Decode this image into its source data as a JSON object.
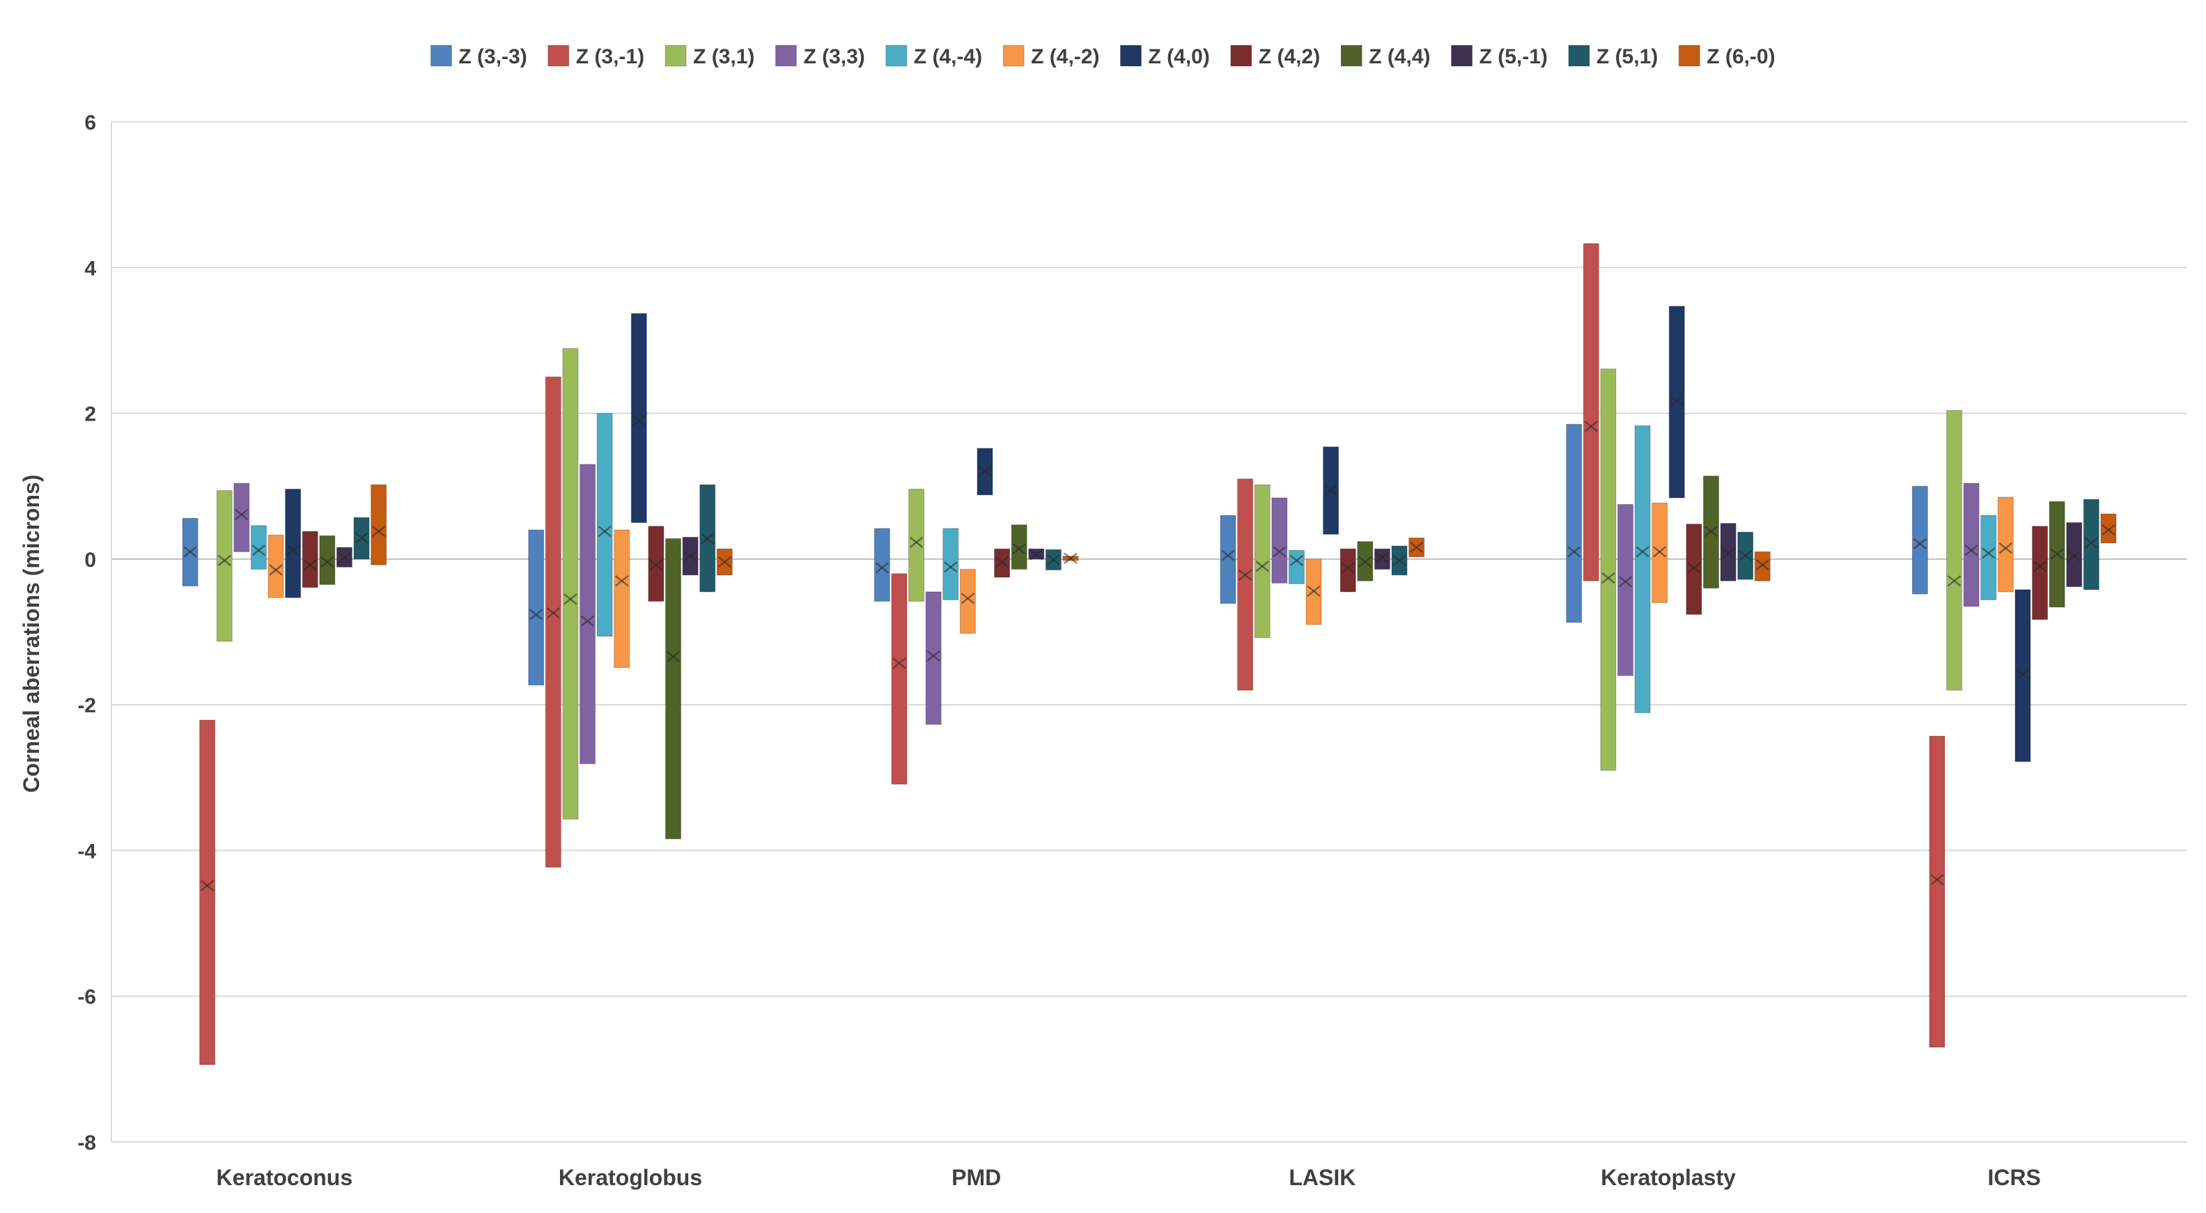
{
  "chart_data": {
    "type": "bar",
    "subtype": "floating-range-with-mean-marker",
    "title": "",
    "xlabel": "",
    "ylabel": "Corneal aberrations (microns)",
    "ylim": [
      -8,
      6
    ],
    "yticks": [
      6,
      4,
      2,
      0,
      -2,
      -4,
      -6,
      -8
    ],
    "grid": true,
    "legend_position": "top",
    "categories": [
      "Keratoconus",
      "Keratoglobus",
      "PMD",
      "LASIK",
      "Keratoplasty",
      "ICRS"
    ],
    "series": [
      {
        "name": "Z (3,-3)",
        "color": "#4f81bd",
        "low": [
          -0.37,
          -1.73,
          -0.58,
          -0.61,
          -0.87,
          -0.48
        ],
        "high": [
          0.56,
          0.4,
          0.42,
          0.6,
          1.85,
          1.0
        ],
        "mean": [
          0.1,
          -0.76,
          -0.12,
          0.05,
          0.1,
          0.21
        ]
      },
      {
        "name": "Z (3,-1)",
        "color": "#c0504d",
        "low": [
          -6.94,
          -4.23,
          -3.09,
          -1.8,
          -0.3,
          -6.7
        ],
        "high": [
          -2.21,
          2.5,
          -0.2,
          1.1,
          4.33,
          -2.43
        ],
        "mean": [
          -4.48,
          -0.74,
          -1.43,
          -0.22,
          1.82,
          -4.4
        ]
      },
      {
        "name": "Z (3,1)",
        "color": "#9bbb59",
        "low": [
          -1.13,
          -3.57,
          -0.58,
          -1.08,
          -2.9,
          -1.8
        ],
        "high": [
          0.94,
          2.89,
          0.96,
          1.02,
          2.61,
          2.04
        ],
        "mean": [
          -0.02,
          -0.55,
          0.23,
          -0.1,
          -0.26,
          -0.3
        ]
      },
      {
        "name": "Z (3,3)",
        "color": "#8064a2",
        "low": [
          0.1,
          -2.81,
          -2.27,
          -0.33,
          -1.6,
          -0.65
        ],
        "high": [
          1.04,
          1.3,
          -0.45,
          0.84,
          0.75,
          1.04
        ],
        "mean": [
          0.61,
          -0.85,
          -1.33,
          0.1,
          -0.31,
          0.12
        ]
      },
      {
        "name": "Z (4,-4)",
        "color": "#4bacc6",
        "low": [
          -0.14,
          -1.06,
          -0.56,
          -0.34,
          -2.11,
          -0.56
        ],
        "high": [
          0.46,
          2.0,
          0.42,
          0.12,
          1.83,
          0.6
        ],
        "mean": [
          0.12,
          0.38,
          -0.11,
          -0.02,
          0.1,
          0.08
        ]
      },
      {
        "name": "Z (4,-2)",
        "color": "#f79646",
        "low": [
          -0.53,
          -1.49,
          -1.02,
          -0.9,
          -0.6,
          -0.45
        ],
        "high": [
          0.33,
          0.4,
          -0.14,
          0.0,
          0.77,
          0.85
        ],
        "mean": [
          -0.15,
          -0.3,
          -0.54,
          -0.44,
          0.1,
          0.15
        ]
      },
      {
        "name": "Z (4,0)",
        "color": "#1f3864",
        "low": [
          -0.53,
          0.5,
          0.88,
          0.34,
          0.84,
          -2.78
        ],
        "high": [
          0.96,
          3.37,
          1.52,
          1.54,
          3.47,
          -0.42
        ],
        "mean": [
          0.12,
          1.9,
          1.21,
          0.95,
          2.17,
          -1.58
        ]
      },
      {
        "name": "Z (4,2)",
        "color": "#7b2c2c",
        "low": [
          -0.39,
          -0.58,
          -0.25,
          -0.45,
          -0.76,
          -0.83
        ],
        "high": [
          0.38,
          0.45,
          0.14,
          0.14,
          0.48,
          0.45
        ],
        "mean": [
          -0.08,
          -0.08,
          -0.04,
          -0.12,
          -0.12,
          -0.1
        ]
      },
      {
        "name": "Z (4,4)",
        "color": "#4f6228",
        "low": [
          -0.35,
          -3.84,
          -0.14,
          -0.3,
          -0.4,
          -0.66
        ],
        "high": [
          0.32,
          0.28,
          0.47,
          0.24,
          1.14,
          0.79
        ],
        "mean": [
          -0.04,
          -1.34,
          0.14,
          -0.04,
          0.38,
          0.07
        ]
      },
      {
        "name": "Z (5,-1)",
        "color": "#3f3151",
        "low": [
          -0.11,
          -0.22,
          0.0,
          -0.14,
          -0.3,
          -0.38
        ],
        "high": [
          0.16,
          0.3,
          0.14,
          0.14,
          0.49,
          0.5
        ],
        "mean": [
          0.02,
          0.04,
          0.06,
          0.02,
          0.08,
          0.04
        ]
      },
      {
        "name": "Z (5,1)",
        "color": "#215967",
        "low": [
          0.0,
          -0.45,
          -0.15,
          -0.22,
          -0.28,
          -0.42
        ],
        "high": [
          0.57,
          1.02,
          0.13,
          0.18,
          0.37,
          0.82
        ],
        "mean": [
          0.29,
          0.28,
          -0.01,
          -0.02,
          0.05,
          0.22
        ]
      },
      {
        "name": "Z (6,-0)",
        "color": "#c55a11",
        "low": [
          -0.08,
          -0.22,
          -0.02,
          0.03,
          -0.3,
          0.22
        ],
        "high": [
          1.02,
          0.14,
          0.04,
          0.29,
          0.1,
          0.62
        ],
        "mean": [
          0.38,
          -0.04,
          0.01,
          0.16,
          -0.08,
          0.4
        ]
      }
    ]
  }
}
